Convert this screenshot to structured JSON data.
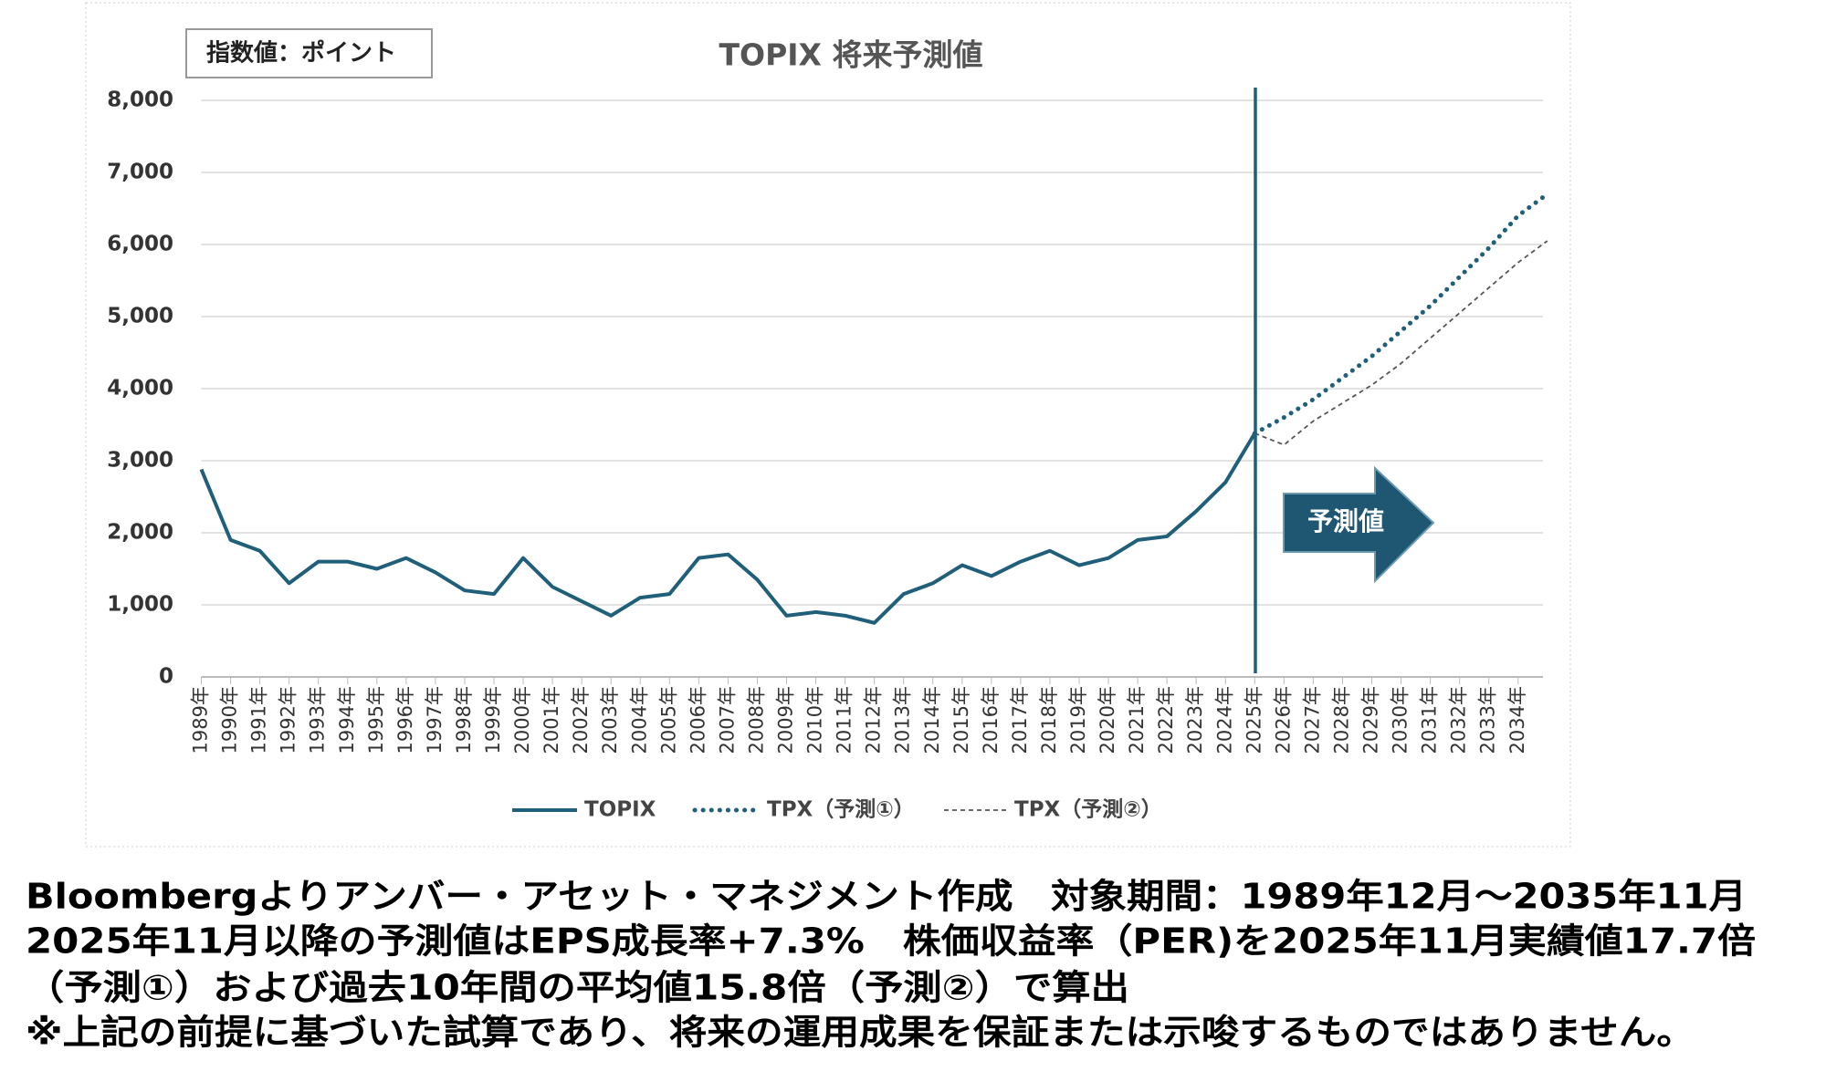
{
  "chart_data": {
    "type": "line",
    "title": "TOPIX 将来予測値",
    "unit_label": "指数値：ポイント",
    "annotation": "予測値",
    "categories": [
      "1989年",
      "1990年",
      "1991年",
      "1992年",
      "1993年",
      "1994年",
      "1995年",
      "1996年",
      "1997年",
      "1998年",
      "1999年",
      "2000年",
      "2001年",
      "2002年",
      "2003年",
      "2004年",
      "2005年",
      "2006年",
      "2007年",
      "2008年",
      "2009年",
      "2010年",
      "2011年",
      "2012年",
      "2013年",
      "2014年",
      "2015年",
      "2016年",
      "2017年",
      "2018年",
      "2019年",
      "2020年",
      "2021年",
      "2022年",
      "2023年",
      "2024年",
      "2025年",
      "2026年",
      "2027年",
      "2028年",
      "2029年",
      "2030年",
      "2031年",
      "2032年",
      "2033年",
      "2034年",
      null
    ],
    "series": [
      {
        "name": "TOPIX",
        "color": "#1f5f7a",
        "style": "solid",
        "values": [
          2880,
          1900,
          1750,
          1300,
          1600,
          1600,
          1500,
          1650,
          1450,
          1200,
          1150,
          1650,
          1250,
          1050,
          850,
          1100,
          1150,
          1650,
          1700,
          1350,
          850,
          900,
          850,
          750,
          1150,
          1300,
          1550,
          1400,
          1600,
          1750,
          1550,
          1650,
          1900,
          1950,
          2300,
          2700,
          3380,
          null,
          null,
          null,
          null,
          null,
          null,
          null,
          null,
          null,
          null
        ]
      },
      {
        "name": "TPX（予測①）",
        "color": "#1f5f7a",
        "style": "dotted",
        "values": [
          null,
          null,
          null,
          null,
          null,
          null,
          null,
          null,
          null,
          null,
          null,
          null,
          null,
          null,
          null,
          null,
          null,
          null,
          null,
          null,
          null,
          null,
          null,
          null,
          null,
          null,
          null,
          null,
          null,
          null,
          null,
          null,
          null,
          null,
          null,
          null,
          3380,
          3600,
          3850,
          4150,
          4450,
          4800,
          5150,
          5550,
          5950,
          6400,
          6700
        ]
      },
      {
        "name": "TPX（予測②）",
        "color": "#555555",
        "style": "dashed",
        "values": [
          null,
          null,
          null,
          null,
          null,
          null,
          null,
          null,
          null,
          null,
          null,
          null,
          null,
          null,
          null,
          null,
          null,
          null,
          null,
          null,
          null,
          null,
          null,
          null,
          null,
          null,
          null,
          null,
          null,
          null,
          null,
          null,
          null,
          null,
          null,
          null,
          3380,
          3220,
          3550,
          3800,
          4050,
          4350,
          4700,
          5050,
          5400,
          5750,
          6050
        ]
      }
    ],
    "ylim": [
      0,
      8000
    ],
    "yticks": [
      0,
      {
        "value": 1000,
        "label": "1,000"
      },
      {
        "value": 2000,
        "label": "2,000"
      },
      {
        "value": 3000,
        "label": "3,000"
      },
      {
        "value": 4000,
        "label": "4,000"
      },
      {
        "value": 5000,
        "label": "5,000"
      },
      {
        "value": 6000,
        "label": "6,000"
      },
      {
        "value": 7000,
        "label": "7,000"
      },
      {
        "value": 8000,
        "label": "8,000"
      }
    ],
    "grid": true,
    "legend": "bottom"
  },
  "notes": [
    "Bloombergよりアンバー・アセット・マネジメント作成　対象期間：1989年12月～2035年11月",
    "2025年11月以降の予測値はEPS成長率+7.3%　株価収益率（PER)を2025年11月実績値17.7倍",
    "（予測①）および過去10年間の平均値15.8倍（予測②）で算出",
    "※上記の前提に基づいた試算であり、将来の運用成果を保証または示唆するものではありません。"
  ]
}
